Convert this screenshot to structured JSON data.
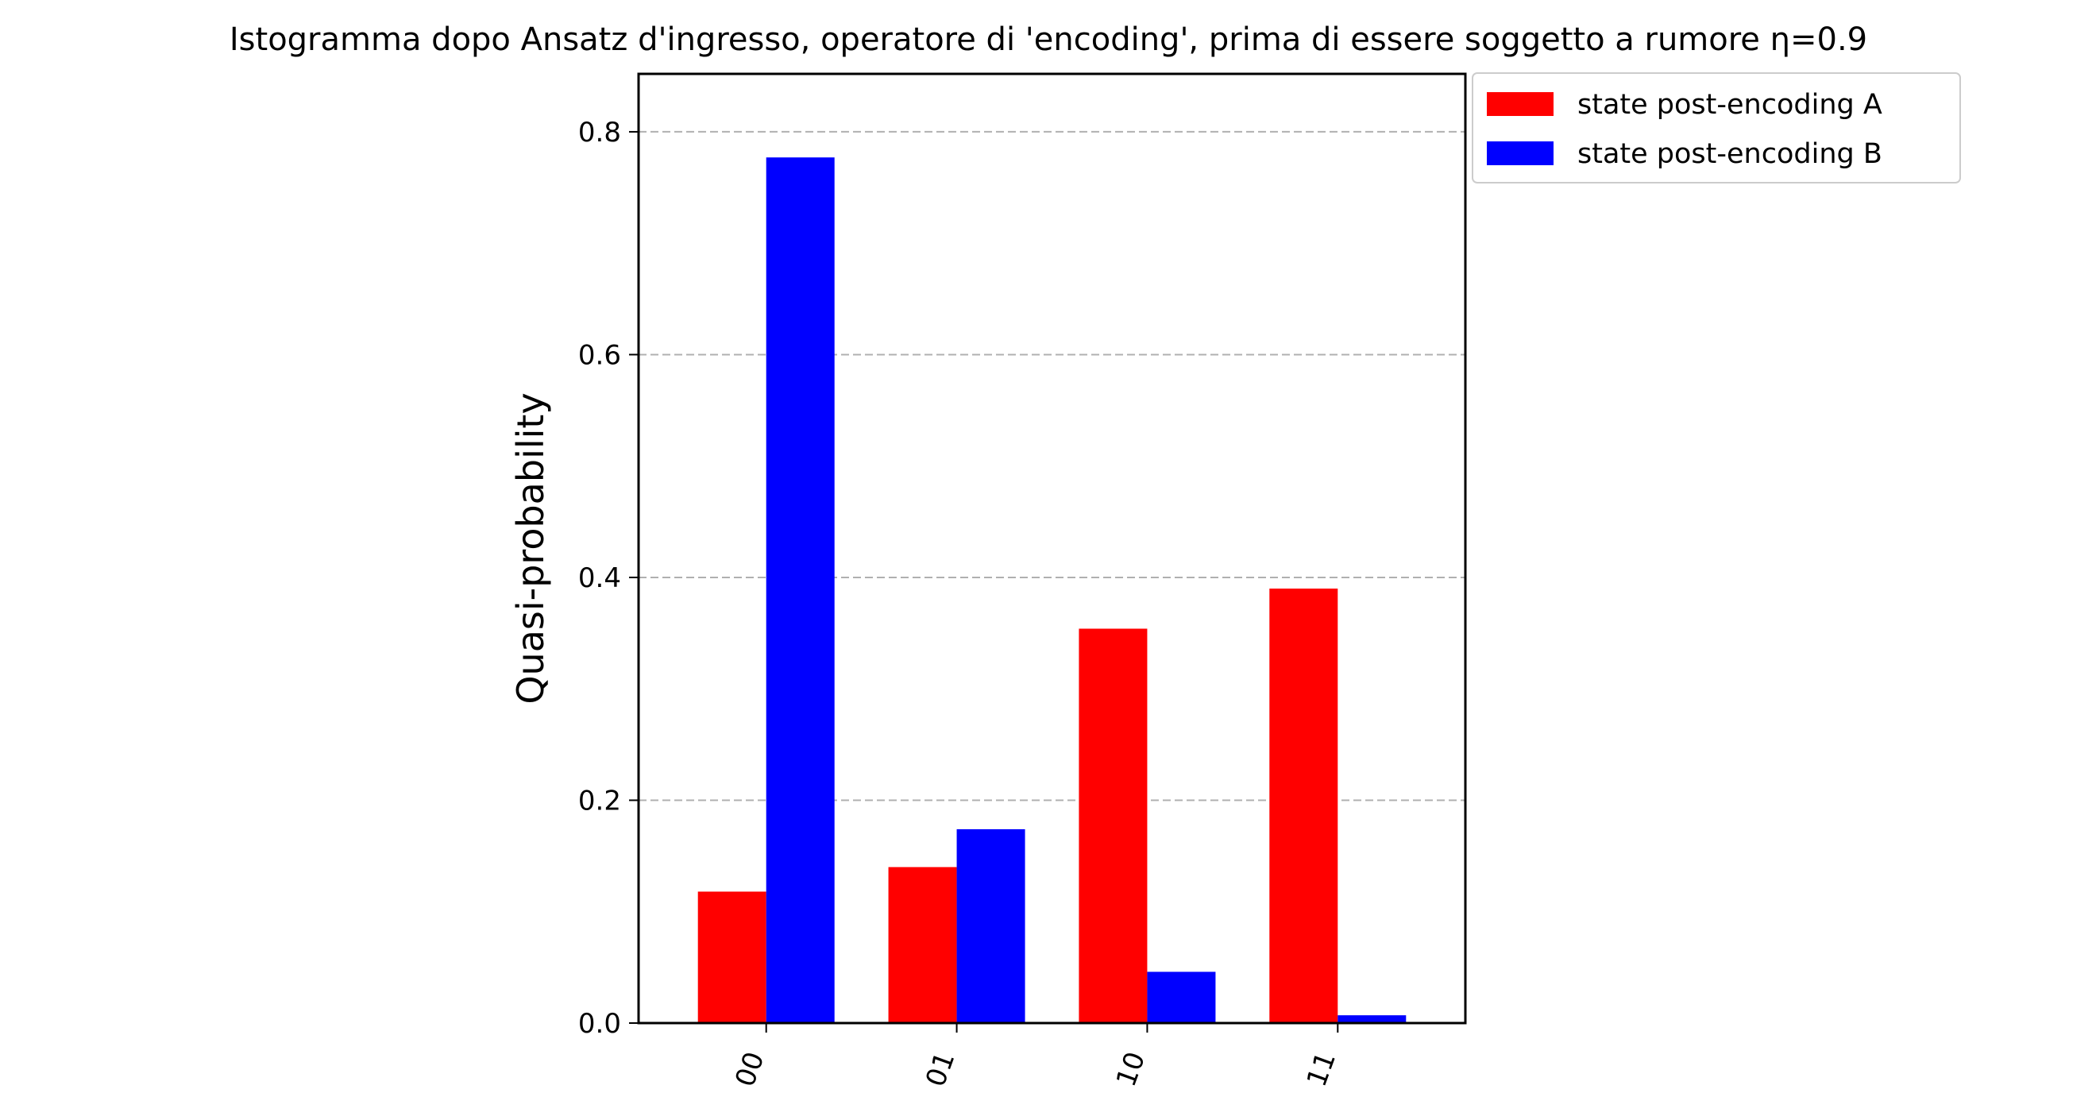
{
  "chart_data": {
    "type": "bar",
    "title": "Istogramma dopo Ansatz d'ingresso, operatore di 'encoding', prima di essere soggetto a rumore η=0.9",
    "xlabel": "",
    "ylabel": "Quasi-probability",
    "categories": [
      "00",
      "01",
      "10",
      "11"
    ],
    "ylim": [
      0,
      0.852
    ],
    "yticks": [
      0.0,
      0.2,
      0.4,
      0.6,
      0.8
    ],
    "ytick_labels": [
      "0.0",
      "0.2",
      "0.4",
      "0.6",
      "0.8"
    ],
    "grid": "y-dashed",
    "legend_position": "outside-top-right",
    "series": [
      {
        "name": "state post-encoding A",
        "color": "#ff0000",
        "values": [
          0.118,
          0.14,
          0.354,
          0.39
        ]
      },
      {
        "name": "state post-encoding B",
        "color": "#0000ff",
        "values": [
          0.777,
          0.174,
          0.046,
          0.007
        ]
      }
    ]
  }
}
